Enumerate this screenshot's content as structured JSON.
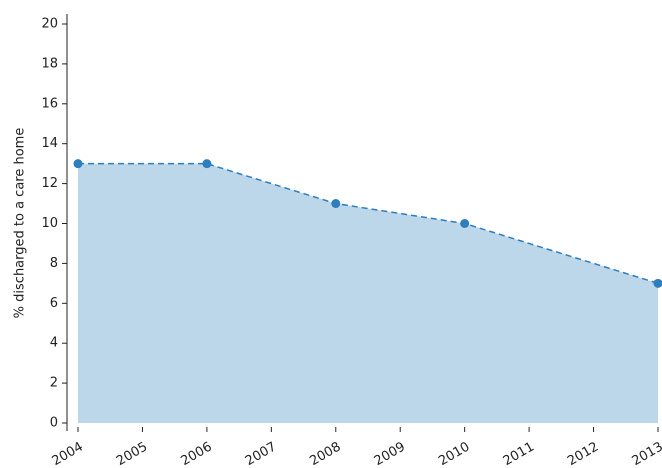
{
  "chart_data": {
    "type": "area",
    "ylabel": "% discharged to a care home",
    "x": [
      2004,
      2006,
      2008,
      2010,
      2013
    ],
    "values": [
      13,
      13,
      11,
      10,
      7
    ],
    "line_color": "#2e7dbd",
    "fill_color": "#bcd6ea",
    "line_style": "dashed",
    "xlim": [
      2004,
      2013
    ],
    "xticks": [
      2004,
      2005,
      2006,
      2007,
      2008,
      2009,
      2010,
      2011,
      2012,
      2013
    ],
    "ylim": [
      0,
      20
    ],
    "yticks": [
      0,
      2,
      4,
      6,
      8,
      10,
      12,
      14,
      16,
      18,
      20
    ]
  }
}
